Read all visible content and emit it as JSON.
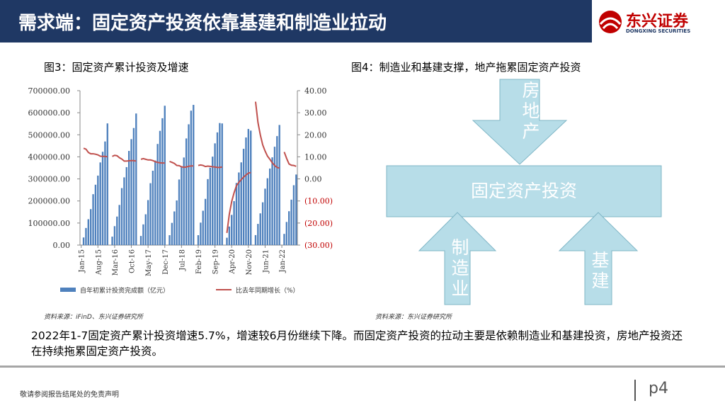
{
  "header": {
    "title": "需求端：固定资产投资依靠基建和制造业拉动"
  },
  "logo": {
    "name": "东兴证券",
    "sub": "DONGXING SECURITIES"
  },
  "chart_data": {
    "type": "combo",
    "title": "图3：固定资产累计投资及增速",
    "source": "资料来源：iFinD、东兴证券研究所",
    "categories": [
      "Jan-15",
      null,
      null,
      null,
      null,
      null,
      null,
      "Aug-15",
      null,
      null,
      null,
      null,
      null,
      null,
      "Mar-16",
      null,
      null,
      null,
      null,
      null,
      null,
      "Oct-16",
      null,
      null,
      null,
      null,
      null,
      null,
      "May-17",
      null,
      null,
      null,
      null,
      null,
      null,
      "Dec-17",
      null,
      null,
      null,
      null,
      null,
      null,
      "Jul-18",
      null,
      null,
      null,
      null,
      null,
      null,
      "Feb-19",
      null,
      null,
      null,
      null,
      null,
      null,
      "Sep-19",
      null,
      null,
      null,
      null,
      null,
      null,
      "Apr-20",
      null,
      null,
      null,
      null,
      null,
      null,
      "Nov-20",
      null,
      null,
      null,
      null,
      null,
      null,
      "Jun-21",
      null,
      null,
      null,
      null,
      null,
      null,
      "Jan-22",
      null,
      null,
      null,
      null,
      null,
      null
    ],
    "series": [
      {
        "name": "自年初累计投资完成额（亿元）",
        "type": "bar",
        "color": "#4f81bd",
        "values": [
          null,
          34477,
          77511,
          117181,
          163040,
          230717,
          273624,
          315003,
          374676,
          422936,
          469758,
          551590,
          null,
          38288,
          85843,
          129350,
          181937,
          258360,
          306986,
          353437,
          426906,
          480300,
          530772,
          596501,
          null,
          41378,
          93777,
          139670,
          203970,
          280605,
          337213,
          383237,
          458478,
          517818,
          575057,
          631684,
          null,
          44813,
          100763,
          152654,
          202367,
          297316,
          353046,
          397005,
          483442,
          547567,
          609441,
          635636,
          null,
          44849,
          101871,
          155747,
          209480,
          299100,
          350934,
          400937,
          461204,
          510880,
          553250,
          551478,
          null,
          33323,
          84145,
          136824,
          199194,
          281603,
          329214,
          374990,
          436530,
          487880,
          526420,
          518907,
          null,
          45236,
          95994,
          143804,
          193917,
          255900,
          302993,
          346913,
          397827,
          445823,
          494082,
          544547,
          null,
          50763,
          104872,
          153544,
          205964,
          271430,
          319812
        ]
      },
      {
        "name": "比去年同期增长（%）",
        "type": "line",
        "axis": "y2",
        "color": "#c0504d",
        "values": [
          null,
          13.9,
          13.5,
          12.0,
          11.4,
          11.4,
          11.2,
          10.9,
          10.3,
          10.2,
          10.2,
          10.0,
          null,
          10.2,
          10.7,
          10.5,
          9.6,
          9.0,
          8.1,
          8.1,
          8.2,
          8.3,
          8.3,
          8.1,
          null,
          8.9,
          9.2,
          8.9,
          8.6,
          8.6,
          8.3,
          7.8,
          7.5,
          7.3,
          7.2,
          7.2,
          null,
          7.9,
          7.5,
          7.0,
          6.1,
          6.0,
          5.5,
          5.3,
          5.4,
          5.7,
          5.9,
          5.9,
          null,
          6.1,
          6.3,
          6.1,
          5.6,
          5.8,
          5.7,
          5.5,
          5.4,
          5.2,
          5.2,
          5.4,
          null,
          -24.5,
          -16.1,
          -10.3,
          -6.3,
          -3.1,
          -1.6,
          -0.3,
          0.8,
          1.8,
          2.6,
          2.9,
          null,
          35.0,
          25.6,
          19.9,
          15.4,
          12.6,
          10.3,
          8.9,
          7.3,
          6.1,
          5.2,
          4.9,
          null,
          12.2,
          9.3,
          6.8,
          6.2,
          6.1,
          5.7
        ]
      }
    ],
    "ylim": [
      0,
      700000
    ],
    "yticks": [
      {
        "value": 0,
        "label": "0.00"
      },
      {
        "value": 100000,
        "label": "100000.00"
      },
      {
        "value": 200000,
        "label": "200000.00"
      },
      {
        "value": 300000,
        "label": "300000.00"
      },
      {
        "value": 400000,
        "label": "400000.00"
      },
      {
        "value": 500000,
        "label": "500000.00"
      },
      {
        "value": 600000,
        "label": "600000.00"
      },
      {
        "value": 700000,
        "label": "700000.00"
      }
    ],
    "y2lim": [
      -30,
      40
    ],
    "y2ticks": [
      {
        "value": -30,
        "label": "(30.00)"
      },
      {
        "value": -20,
        "label": "(20.00)"
      },
      {
        "value": -10,
        "label": "(10.00)"
      },
      {
        "value": 0,
        "label": "0.00"
      },
      {
        "value": 10,
        "label": "10.00"
      },
      {
        "value": 20,
        "label": "20.00"
      },
      {
        "value": 30,
        "label": "30.00"
      },
      {
        "value": 40,
        "label": "40.00"
      }
    ],
    "negative_color": "#c00000"
  },
  "diagram": {
    "title": "图4：制造业和基建支撑，地产拖累固定资产投资",
    "center": "固定资产投资",
    "nodes": [
      {
        "label": "房地产"
      },
      {
        "label": "制造业"
      },
      {
        "label": "基建"
      }
    ],
    "source": "资料来源：东兴证券研究所"
  },
  "body": "2022年1-7固定资产累计投资增速5.7%，增速较6月份继续下降。而固定资产投资的拉动主要是依赖制造业和基建投资，房地产投资还在持续拖累固定资产投资。",
  "footer": {
    "disclaimer": "敬请参阅报告结尾处的免责声明",
    "page": "p4"
  }
}
